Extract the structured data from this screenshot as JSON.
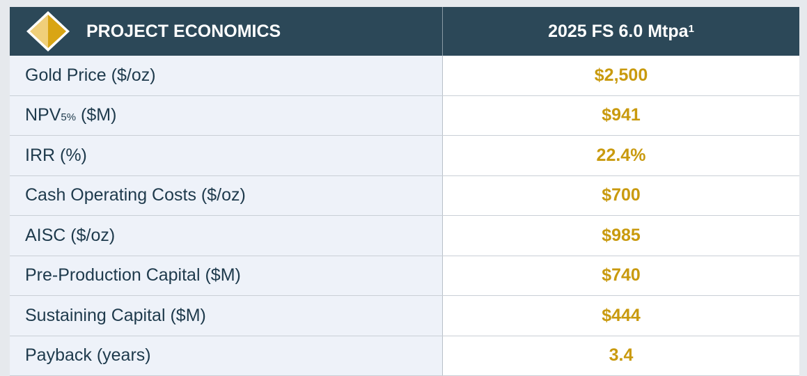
{
  "header": {
    "title": "PROJECT ECONOMICS",
    "column": "2025 FS 6.0 Mtpa",
    "column_sup": "1"
  },
  "rows": [
    {
      "label": "Gold Price ($/oz)",
      "value": "$2,500"
    },
    {
      "label": "NPV",
      "label_sub": "5%",
      "label_rest": " ($M)",
      "value": "$941"
    },
    {
      "label": "IRR (%)",
      "value": "22.4%"
    },
    {
      "label": "Cash Operating Costs ($/oz)",
      "value": "$700"
    },
    {
      "label": "AISC ($/oz)",
      "value": "$985"
    },
    {
      "label": "Pre-Production Capital ($M)",
      "value": "$740"
    },
    {
      "label": "Sustaining Capital ($M)",
      "value": "$444"
    },
    {
      "label": "Payback (years)",
      "value": "3.4"
    }
  ]
}
